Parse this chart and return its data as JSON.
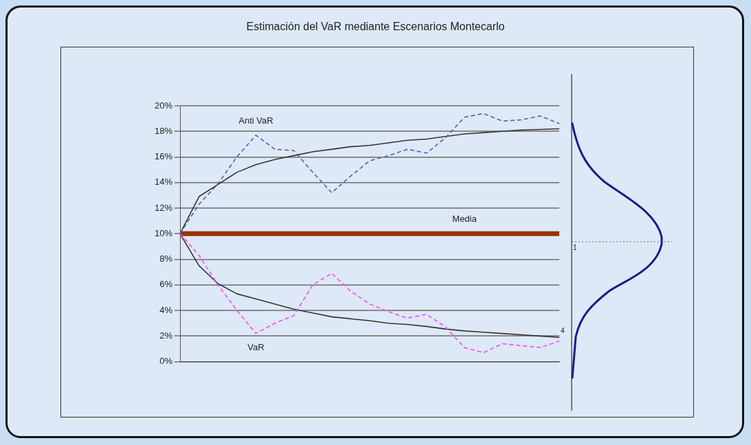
{
  "chart_data": {
    "type": "line",
    "title": "Estimación del VaR mediante Escenarios Montecarlo",
    "categories": [
      null,
      null,
      null,
      null,
      null,
      null,
      null,
      null,
      null,
      null,
      null,
      null,
      null,
      null,
      null,
      null,
      null,
      null,
      null,
      null,
      null
    ],
    "series": [
      {
        "name": "Anti VaR",
        "color": "#5a5aa8",
        "line_style": "dashed",
        "values": [
          10,
          12.3,
          13.9,
          16.0,
          17.7,
          16.6,
          16.5,
          14.8,
          13.2,
          14.5,
          15.7,
          16.1,
          16.6,
          16.3,
          17.5,
          19.1,
          19.4,
          18.8,
          18.9,
          19.2,
          18.6
        ]
      },
      {
        "name": "VaR",
        "color": "#ff44ff",
        "line_style": "dashed",
        "values": [
          10,
          8.3,
          6.0,
          4.0,
          2.2,
          3.0,
          3.6,
          6.0,
          6.9,
          5.5,
          4.5,
          3.9,
          3.4,
          3.7,
          2.7,
          1.1,
          0.7,
          1.4,
          1.25,
          1.1,
          1.6
        ]
      },
      {
        "color": "#333333",
        "values": [
          10,
          12.9,
          13.85,
          14.8,
          15.4,
          15.8,
          16.1,
          16.4,
          16.6,
          16.8,
          16.9,
          17.1,
          17.3,
          17.4,
          17.6,
          17.8,
          17.9,
          18.0,
          18.1,
          18.15,
          18.2
        ]
      },
      {
        "color": "#333333",
        "values": [
          10,
          7.5,
          6.1,
          5.3,
          4.9,
          4.5,
          4.1,
          3.8,
          3.5,
          3.35,
          3.2,
          3.0,
          2.9,
          2.75,
          2.55,
          2.4,
          2.3,
          2.2,
          2.1,
          2.0,
          1.9
        ]
      },
      {
        "name": "Media",
        "color": "#993300",
        "values": [
          10,
          10,
          10,
          10,
          10,
          10,
          10,
          10,
          10,
          10,
          10,
          10,
          10,
          10,
          10,
          10,
          10,
          10,
          10,
          10,
          10
        ]
      }
    ],
    "ylim": [
      0,
      20
    ],
    "yticks": [
      {
        "value": 0,
        "label": "0%"
      },
      {
        "value": 2,
        "label": "2%"
      },
      {
        "value": 4,
        "label": "4%"
      },
      {
        "value": 6,
        "label": "6%"
      },
      {
        "value": 8,
        "label": "8%"
      },
      {
        "value": 10,
        "label": "10%"
      },
      {
        "value": 12,
        "label": "12%"
      },
      {
        "value": 14,
        "label": "14%"
      },
      {
        "value": 16,
        "label": "16%"
      },
      {
        "value": 18,
        "label": "18%"
      },
      {
        "value": 20,
        "label": "20%"
      }
    ],
    "grid": "y",
    "legend": false,
    "marker": "none",
    "annotations": [
      "1",
      "4"
    ]
  }
}
